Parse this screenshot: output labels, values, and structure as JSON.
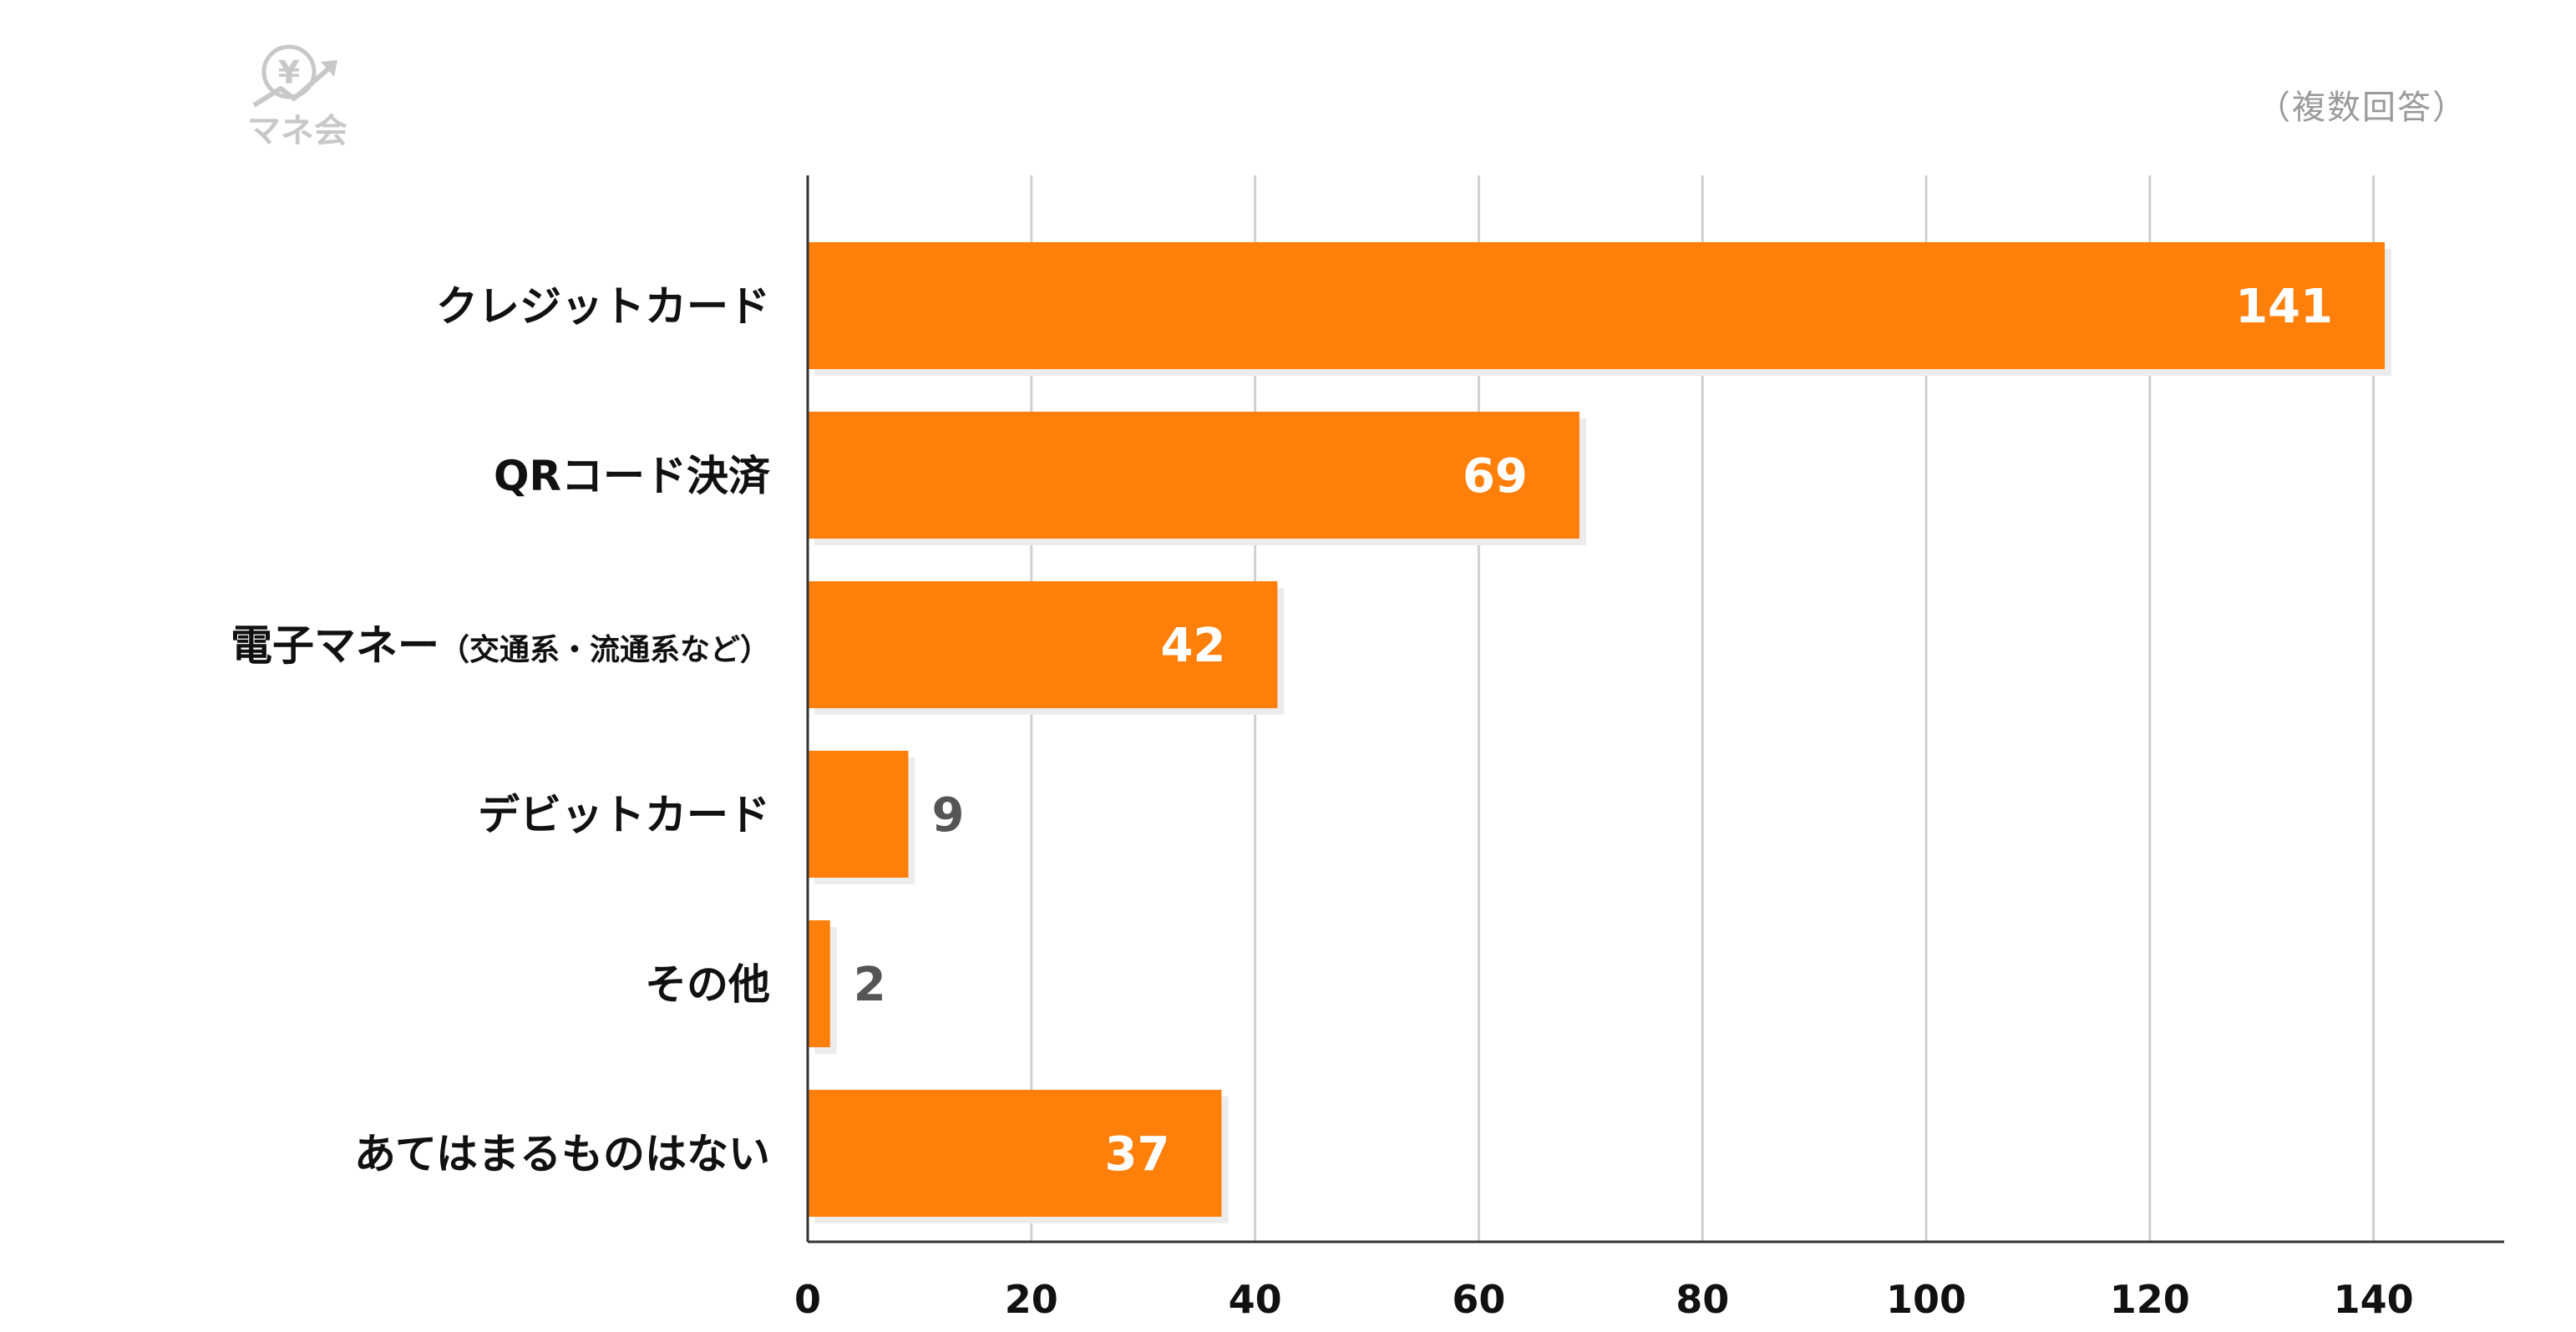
{
  "brand": {
    "logo_text": "マネ会",
    "logo_symbol": "¥",
    "logo_color": "#c8c8c8"
  },
  "note": "（複数回答）",
  "chart_data": {
    "type": "bar",
    "orientation": "horizontal",
    "categories": [
      "クレジットカード",
      "QRコード決済",
      "電子マネー（交通系・流通系など）",
      "デビットカード",
      "その他",
      "あてはまるものはない"
    ],
    "category_display": [
      {
        "main": "クレジットカード",
        "sub": ""
      },
      {
        "main": "QRコード決済",
        "sub": ""
      },
      {
        "main": "電子マネー",
        "sub": "（交通系・流通系など）"
      },
      {
        "main": "デビットカード",
        "sub": ""
      },
      {
        "main": "その他",
        "sub": ""
      },
      {
        "main": "あてはまるものはない",
        "sub": ""
      }
    ],
    "values": [
      141,
      69,
      42,
      9,
      2,
      37
    ],
    "xlim": [
      0,
      145
    ],
    "xticks": [
      0,
      20,
      40,
      60,
      80,
      100,
      120,
      140
    ],
    "grid": true,
    "bar_color": "#ff7f0b",
    "shadow_color": "#ececec",
    "label_inside_color": "#ffffff",
    "label_outside_color": "#555555",
    "title": "",
    "xlabel": "",
    "ylabel": ""
  }
}
